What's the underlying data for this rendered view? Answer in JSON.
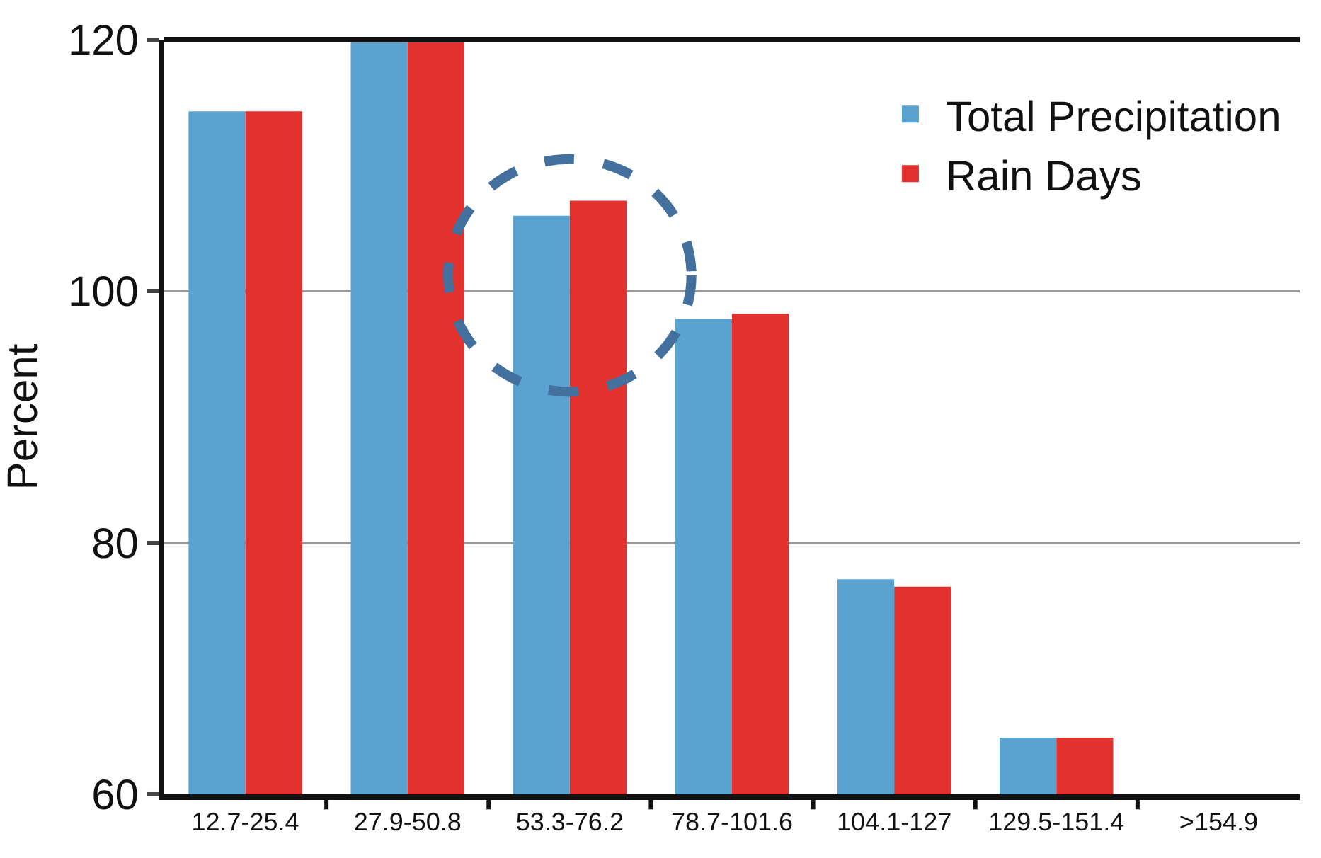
{
  "chart_data": {
    "type": "bar",
    "ylabel": "Percent",
    "categories": [
      "12.7-25.4",
      "27.9-50.8",
      "53.3-76.2",
      "78.7-101.6",
      "104.1-127",
      "129.5-151.4",
      ">154.9"
    ],
    "series": [
      {
        "name": "Total Precipitation",
        "color": "#5aa3d0",
        "values": [
          114.3,
          120,
          106.0,
          97.8,
          77.1,
          64.5,
          null
        ]
      },
      {
        "name": "Rain Days",
        "color": "#e3312e",
        "values": [
          114.3,
          120,
          107.2,
          98.2,
          76.5,
          64.5,
          null
        ]
      }
    ],
    "ylim": [
      60,
      120
    ],
    "yticks": [
      60,
      80,
      100,
      120
    ],
    "grid": "y",
    "legend": "top right"
  }
}
